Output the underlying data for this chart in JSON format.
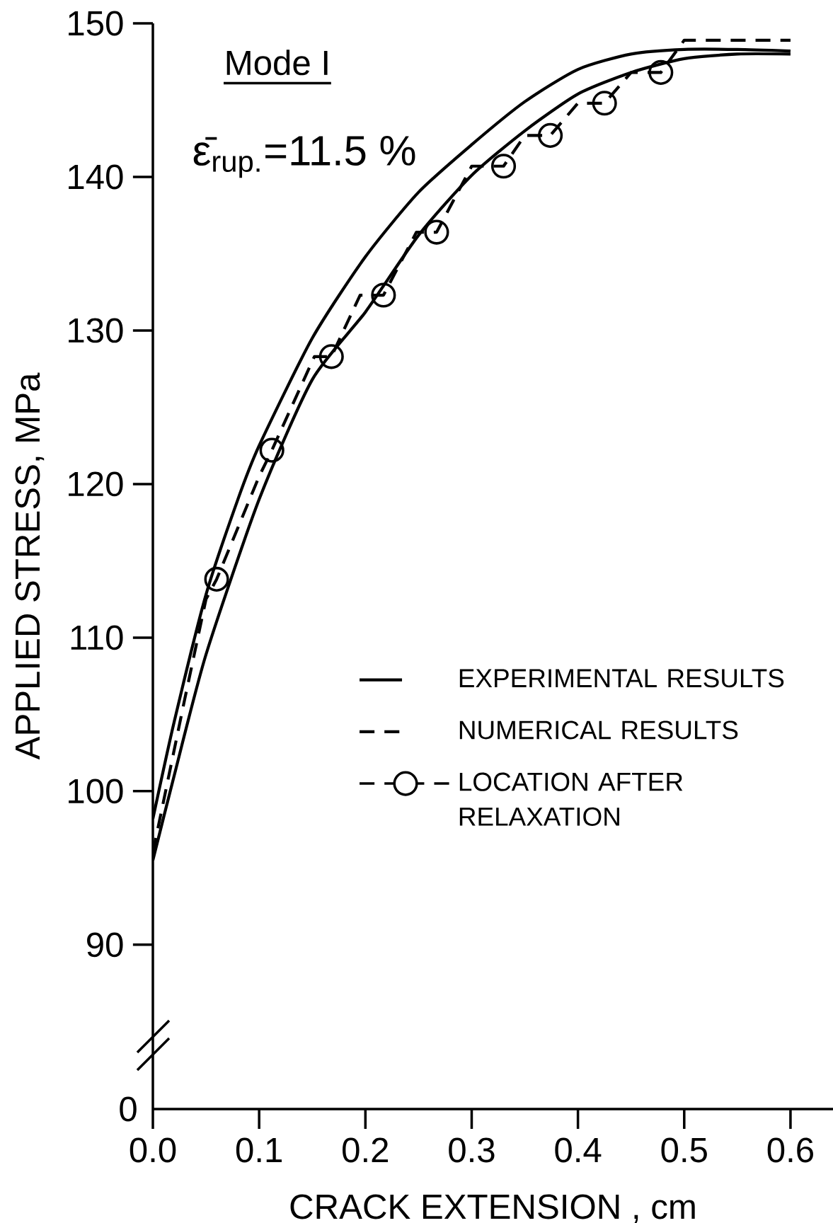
{
  "chart_data": {
    "type": "line",
    "xlabel": "CRACK EXTENSION , cm",
    "ylabel": "APPLIED STRESS, MPa",
    "annotations": [
      "Mode I",
      "ε̄$_{rup.}$=11.5 %",
      "0"
    ],
    "xlim": [
      0,
      0.64
    ],
    "ylim": [
      79.3,
      150
    ],
    "xticks": [
      {
        "value": 0,
        "label": "0.0"
      },
      {
        "value": 0.1,
        "label": "0.1"
      },
      {
        "value": 0.2,
        "label": "0.2"
      },
      {
        "value": 0.3,
        "label": "0.3"
      },
      {
        "value": 0.4,
        "label": "0.4"
      },
      {
        "value": 0.5,
        "label": "0.5"
      },
      {
        "value": 0.6,
        "label": "0.6"
      }
    ],
    "yticks": [
      90,
      100,
      110,
      120,
      130,
      140,
      150
    ],
    "grid": false,
    "legend": "right",
    "series": [
      {
        "name": "EXPERIMENTAL RESULTS",
        "color": "#000000",
        "line_style": "solid",
        "marker": "none",
        "x": [
          0,
          0.02,
          0.05,
          0.08,
          0.1,
          0.15,
          0.2,
          0.25,
          0.3,
          0.35,
          0.4,
          0.45,
          0.5,
          0.55,
          0.6
        ],
        "values": [
          98.2,
          104.5,
          112.8,
          119.0,
          122.5,
          129.5,
          134.8,
          139.0,
          142.1,
          144.9,
          147.0,
          148.0,
          148.3,
          148.3,
          148.2
        ]
      },
      {
        "color": "#000000",
        "line_style": "solid",
        "marker": "none",
        "x": [
          0,
          0.02,
          0.05,
          0.1,
          0.15,
          0.2,
          0.25,
          0.3,
          0.35,
          0.4,
          0.45,
          0.5,
          0.55,
          0.6
        ],
        "values": [
          95.5,
          101.0,
          108.9,
          119.0,
          126.8,
          131.2,
          136.2,
          140.1,
          143.0,
          145.4,
          146.8,
          147.7,
          148.0,
          148.0
        ]
      },
      {
        "name": "NUMERICAL RESULTS",
        "color": "#000000",
        "line_style": "dashed",
        "marker": "none",
        "x": [
          0,
          0.03,
          0.05,
          0.06,
          0.1,
          0.112,
          0.152,
          0.168,
          0.195,
          0.217,
          0.248,
          0.267,
          0.3,
          0.33,
          0.35,
          0.374,
          0.4,
          0.425,
          0.45,
          0.478,
          0.5,
          0.6
        ],
        "values": [
          96.0,
          106.0,
          112.5,
          113.8,
          120.5,
          122.2,
          128.3,
          128.3,
          132.3,
          132.3,
          136.4,
          136.4,
          140.7,
          140.7,
          142.7,
          142.7,
          144.8,
          144.8,
          146.8,
          146.8,
          148.9,
          148.9
        ]
      },
      {
        "name": "LOCATION AFTER RELAXATION",
        "type": "scatter",
        "color": "#000000",
        "line_style": "dashed",
        "marker": "circle",
        "x": [
          0.06,
          0.112,
          0.168,
          0.217,
          0.267,
          0.33,
          0.374,
          0.425,
          0.478
        ],
        "values": [
          113.8,
          122.2,
          128.3,
          132.3,
          136.4,
          140.7,
          142.7,
          144.8,
          146.8
        ]
      }
    ]
  }
}
